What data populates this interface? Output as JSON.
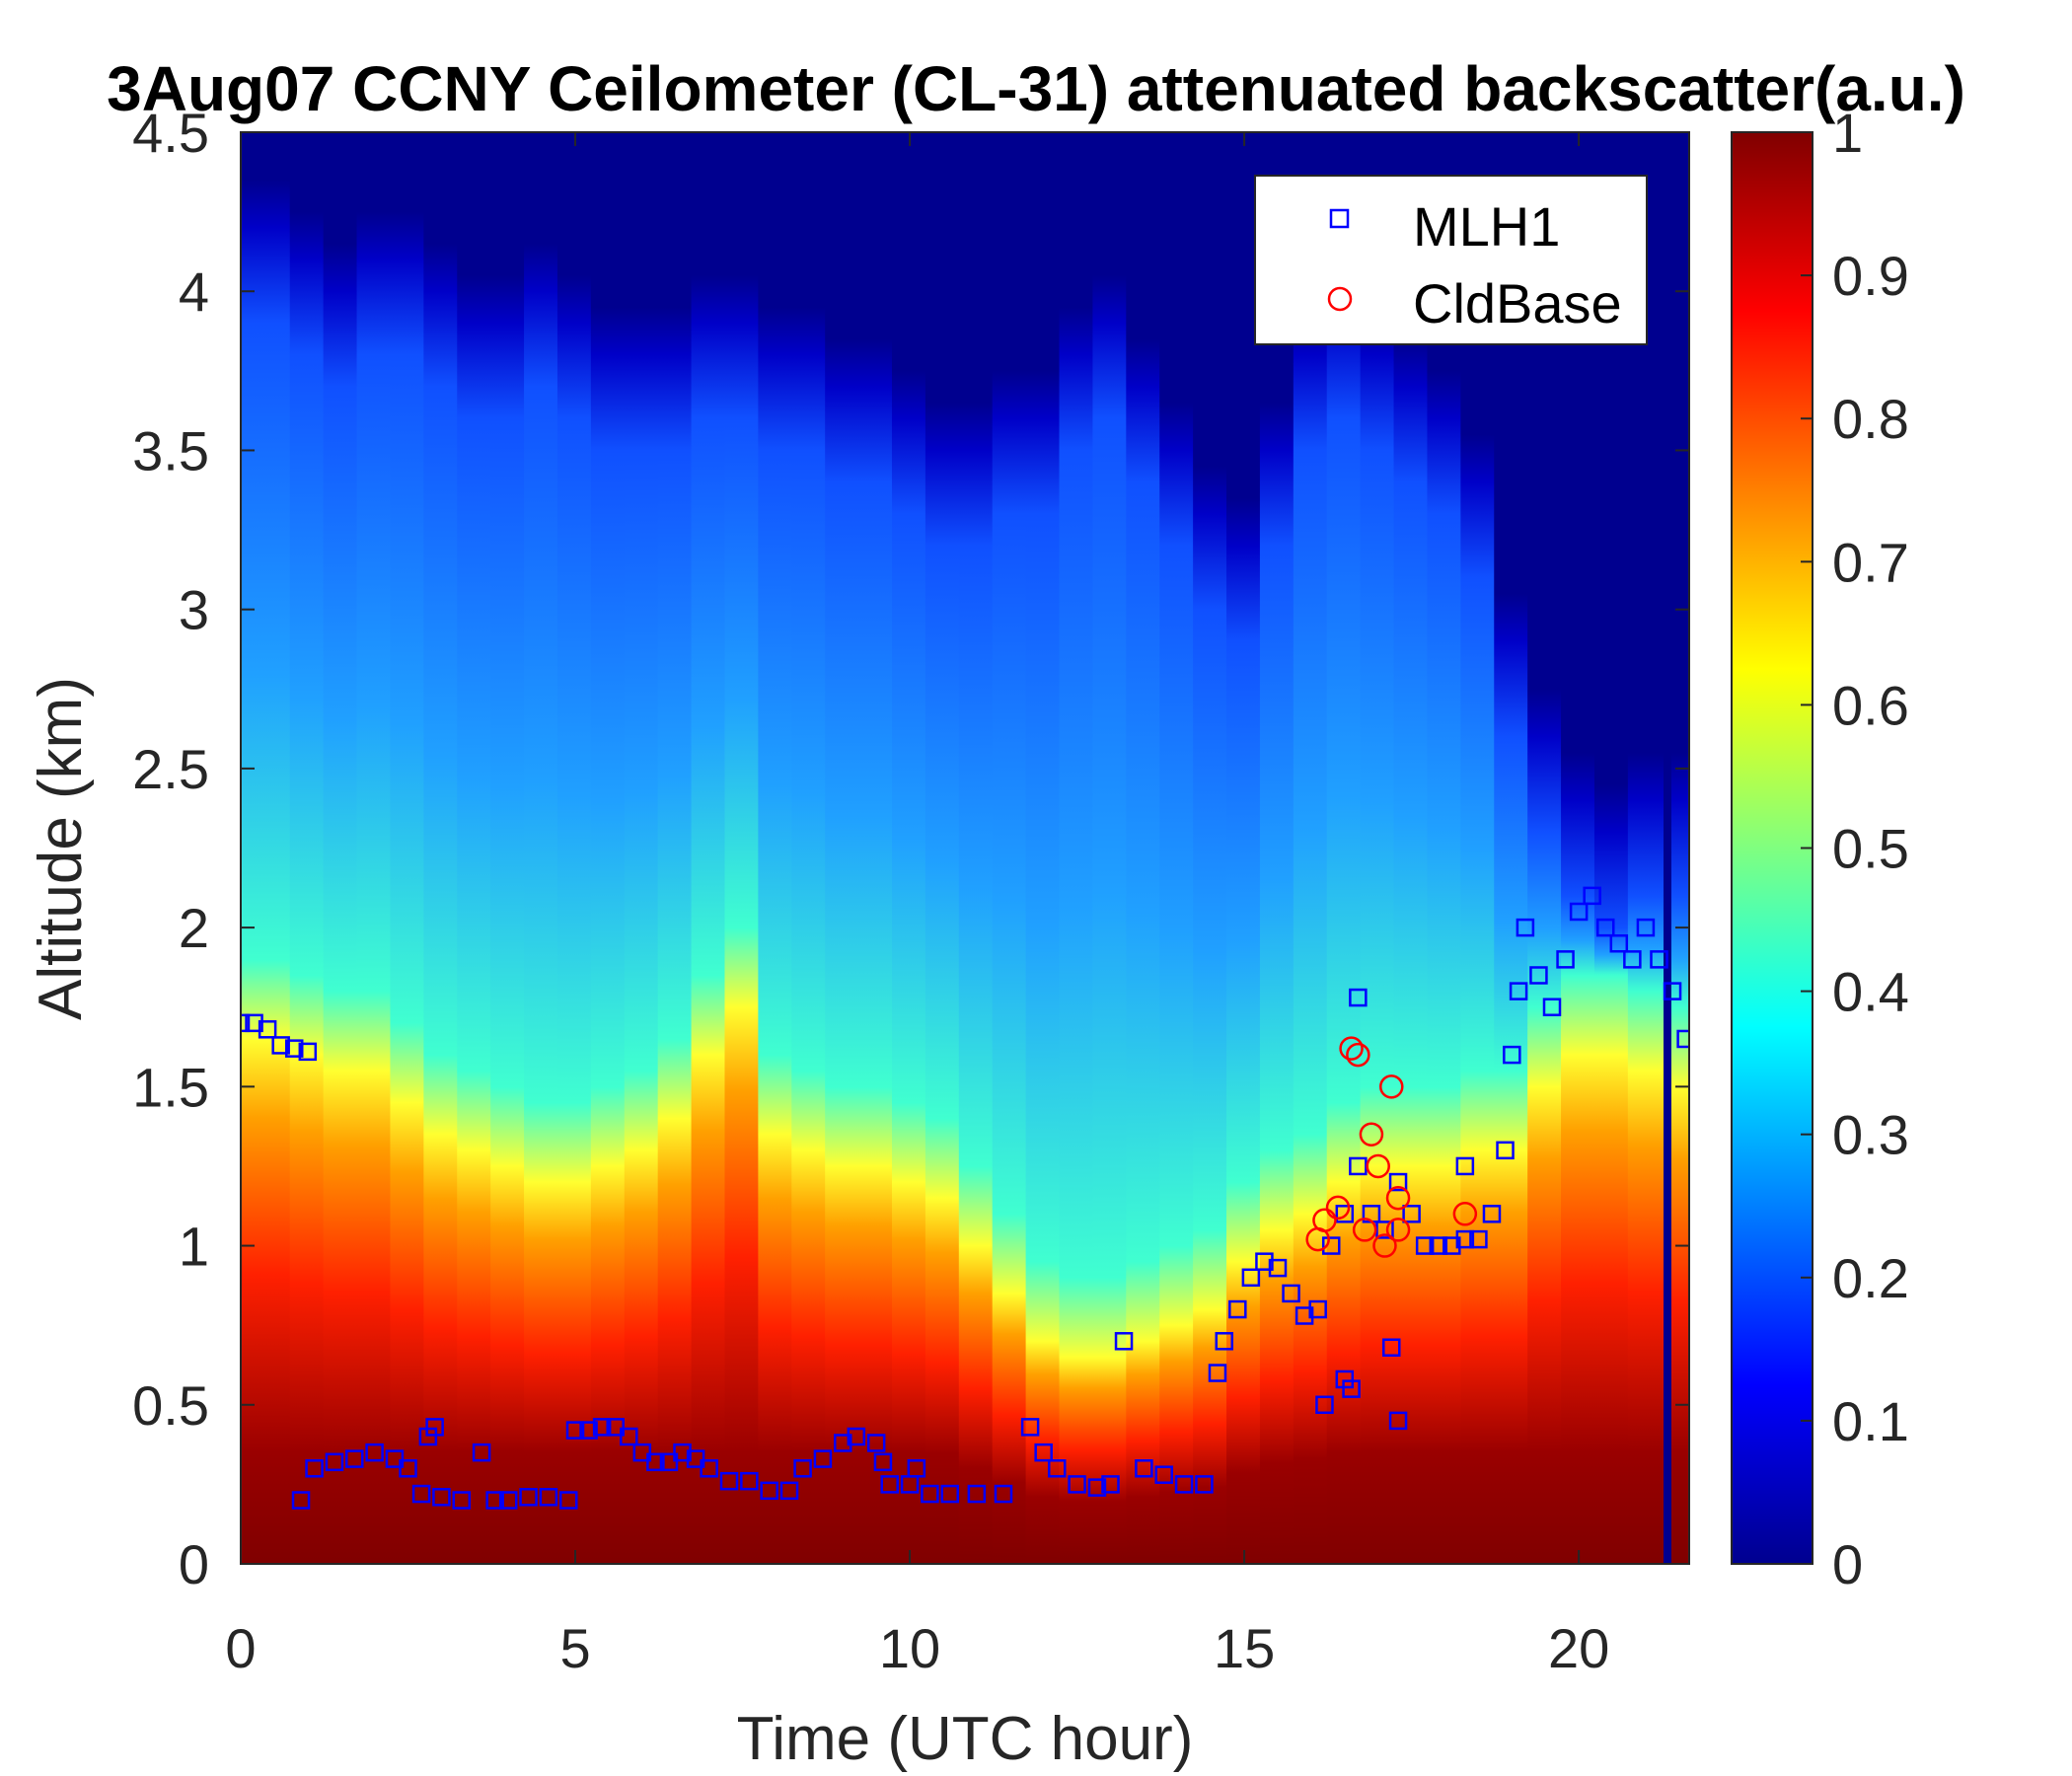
{
  "chart_data": {
    "type": "heatmap",
    "title": "3Aug07 CCNY Ceilometer (CL-31) attenuated backscatter(a.u.)",
    "xlabel": "Time (UTC hour)",
    "ylabel": "Altitude (km)",
    "xlim": [
      0,
      21.65
    ],
    "ylim": [
      0,
      4.5
    ],
    "x_ticks": [
      0,
      5,
      10,
      15,
      20
    ],
    "x_tick_labels": [
      "0",
      "5",
      "10",
      "15",
      "20"
    ],
    "y_ticks": [
      0,
      0.5,
      1,
      1.5,
      2,
      2.5,
      3,
      3.5,
      4,
      4.5
    ],
    "y_tick_labels": [
      "0",
      "0.5",
      "1",
      "1.5",
      "2",
      "2.5",
      "3",
      "3.5",
      "4",
      "4.5"
    ],
    "colorbar": {
      "colormap": "jet",
      "range": [
        0,
        1
      ],
      "ticks": [
        0,
        0.1,
        0.2,
        0.3,
        0.4,
        0.5,
        0.6,
        0.7,
        0.8,
        0.9,
        1
      ],
      "tick_labels": [
        "0",
        "0.1",
        "0.2",
        "0.3",
        "0.4",
        "0.5",
        "0.6",
        "0.7",
        "0.8",
        "0.9",
        "1"
      ]
    },
    "heatmap_profile": {
      "description_units": "km",
      "time_hours": [
        0,
        0.5,
        1,
        1.5,
        2,
        2.5,
        3,
        3.5,
        4,
        4.5,
        5,
        5.5,
        6,
        6.5,
        7,
        7.5,
        8,
        8.5,
        9,
        9.5,
        10,
        10.5,
        11,
        11.5,
        12,
        12.5,
        13,
        13.5,
        14,
        14.5,
        15,
        15.5,
        16,
        16.5,
        17,
        17.5,
        18,
        18.5,
        19,
        19.5,
        20,
        20.5,
        21,
        21.65
      ],
      "high_backscatter_top_km": [
        1.65,
        1.65,
        1.6,
        1.55,
        1.55,
        1.45,
        1.35,
        1.3,
        1.25,
        1.2,
        1.2,
        1.25,
        1.3,
        1.4,
        1.6,
        1.75,
        1.35,
        1.3,
        1.25,
        1.25,
        1.2,
        1.15,
        1.0,
        0.85,
        0.7,
        0.65,
        0.65,
        0.7,
        0.75,
        0.8,
        0.95,
        1.05,
        1.1,
        1.2,
        1.25,
        1.25,
        1.25,
        1.3,
        1.3,
        1.5,
        1.6,
        1.6,
        1.55,
        1.5
      ],
      "aerosol_layer_top_km": [
        4.2,
        4.2,
        4.1,
        4.0,
        4.1,
        4.1,
        4.0,
        3.9,
        3.9,
        4.0,
        3.9,
        3.8,
        3.8,
        3.8,
        3.9,
        3.9,
        3.8,
        3.8,
        3.7,
        3.7,
        3.6,
        3.5,
        3.5,
        3.6,
        3.6,
        3.8,
        3.9,
        3.7,
        3.5,
        3.3,
        3.2,
        3.5,
        3.8,
        3.9,
        3.8,
        3.7,
        3.6,
        3.4,
        2.9,
        2.6,
        2.4,
        2.3,
        2.4,
        2.4
      ]
    },
    "series": [
      {
        "name": "MLH1",
        "marker": "square",
        "color": "#0000ff",
        "x": [
          0,
          0.2,
          0.4,
          0.6,
          0.8,
          1.0,
          0.9,
          1.1,
          1.4,
          1.7,
          2.0,
          2.3,
          2.5,
          2.7,
          2.8,
          2.9,
          3.0,
          3.3,
          3.6,
          3.8,
          4.0,
          4.3,
          4.6,
          4.9,
          5.0,
          5.2,
          5.4,
          5.6,
          5.8,
          6.0,
          6.2,
          6.4,
          6.6,
          6.8,
          7.0,
          7.3,
          7.6,
          7.9,
          8.2,
          8.4,
          8.7,
          9.0,
          9.2,
          9.5,
          9.7,
          10.0,
          10.3,
          10.6,
          11.0,
          11.4,
          11.8,
          12.0,
          12.2,
          12.5,
          12.8,
          13.0,
          13.2,
          13.5,
          13.8,
          14.1,
          14.4,
          14.6,
          14.7,
          14.9,
          15.1,
          15.3,
          15.5,
          15.7,
          15.9,
          16.1,
          16.3,
          16.5,
          16.7,
          16.9,
          17.1,
          17.3,
          17.5,
          17.7,
          17.9,
          18.1,
          18.3,
          18.5,
          18.7,
          18.9,
          19.0,
          19.1,
          19.2,
          19.4,
          19.6,
          19.8,
          20.0,
          20.2,
          20.4,
          20.6,
          20.8,
          21.0,
          21.2,
          21.4,
          21.6
        ],
        "y": [
          1.7,
          1.7,
          1.68,
          1.63,
          1.62,
          1.61,
          0.2,
          0.3,
          0.32,
          0.33,
          0.35,
          0.33,
          0.3,
          0.22,
          0.4,
          0.43,
          0.21,
          0.2,
          0.35,
          0.2,
          0.2,
          0.21,
          0.21,
          0.2,
          0.42,
          0.42,
          0.43,
          0.43,
          0.4,
          0.35,
          0.32,
          0.32,
          0.35,
          0.33,
          0.3,
          0.26,
          0.26,
          0.23,
          0.23,
          0.3,
          0.33,
          0.38,
          0.4,
          0.38,
          0.25,
          0.25,
          0.22,
          0.22,
          0.22,
          0.22,
          0.43,
          0.35,
          0.3,
          0.25,
          0.24,
          0.25,
          0.7,
          0.3,
          0.28,
          0.25,
          0.25,
          0.6,
          0.7,
          0.8,
          0.9,
          0.95,
          0.93,
          0.85,
          0.78,
          0.8,
          1.0,
          1.1,
          1.25,
          1.1,
          1.05,
          1.2,
          1.1,
          1.0,
          1.0,
          1.0,
          1.02,
          1.02,
          1.1,
          1.3,
          1.6,
          1.8,
          2.0,
          1.85,
          1.75,
          1.9,
          2.05,
          2.1,
          2.0,
          1.95,
          1.9,
          2.0,
          1.9,
          1.8,
          1.65
        ],
        "sparse_outliers_x": [
          16.2,
          16.5,
          16.7,
          16.6,
          17.2,
          17.3,
          18.3,
          9.6,
          10.1
        ],
        "sparse_outliers_y": [
          0.5,
          0.58,
          1.78,
          0.55,
          0.68,
          0.45,
          1.25,
          0.32,
          0.3
        ]
      },
      {
        "name": "CldBase",
        "marker": "circle",
        "color": "#ff0000",
        "x": [
          16.1,
          16.2,
          16.4,
          16.6,
          16.7,
          16.8,
          16.9,
          17.0,
          17.1,
          17.2,
          17.3,
          17.3,
          18.3
        ],
        "y": [
          1.02,
          1.08,
          1.12,
          1.62,
          1.6,
          1.05,
          1.35,
          1.25,
          1.0,
          1.5,
          1.15,
          1.05,
          1.1
        ]
      }
    ],
    "legend": {
      "placement": "top-right",
      "entries": [
        "MLH1",
        "CldBase"
      ]
    }
  }
}
